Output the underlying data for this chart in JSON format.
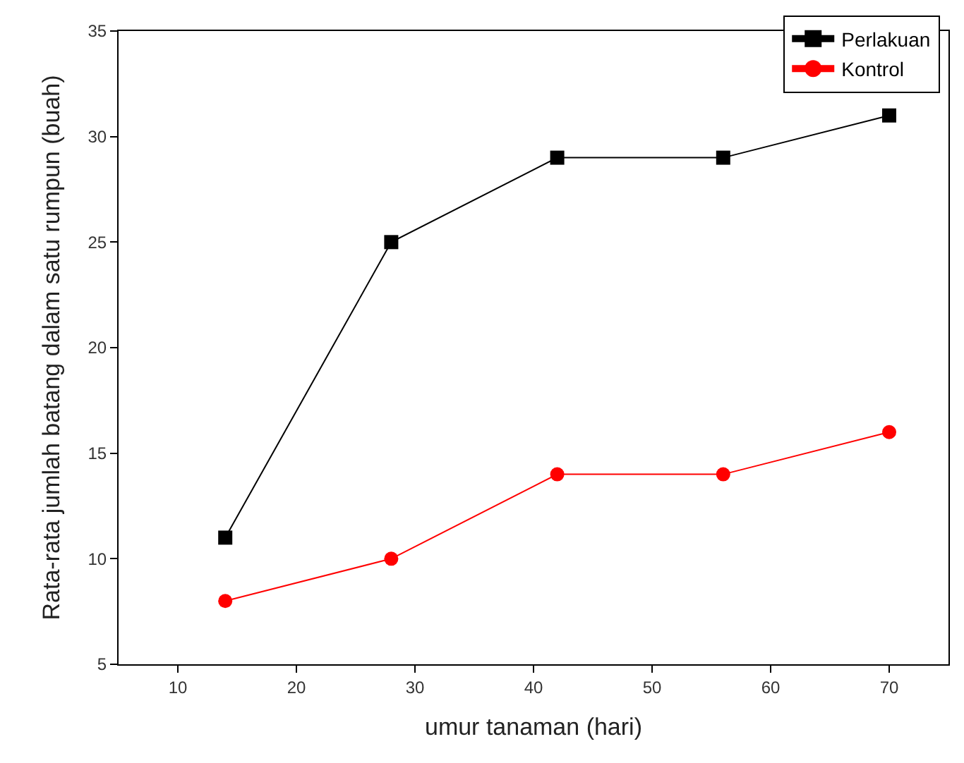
{
  "chart_data": {
    "type": "line",
    "xlabel": "umur tanaman (hari)",
    "ylabel": "Rata-rata jumlah batang dalam satu rumpun (buah)",
    "x": [
      14,
      28,
      42,
      56,
      70
    ],
    "series": [
      {
        "name": "Perlakuan",
        "color": "#000000",
        "values": [
          11,
          25,
          29,
          29,
          31
        ],
        "marker": "square"
      },
      {
        "name": "Kontrol",
        "color": "#ff0000",
        "values": [
          8,
          10,
          14,
          14,
          16
        ],
        "marker": "circle"
      }
    ],
    "xlim": [
      5,
      75
    ],
    "xticks": [
      10,
      20,
      30,
      40,
      50,
      60,
      70
    ],
    "ylim": [
      5,
      35
    ],
    "yticks": [
      5,
      10,
      15,
      20,
      25,
      30,
      35
    ],
    "legend": "top right",
    "line_style": "solid"
  }
}
